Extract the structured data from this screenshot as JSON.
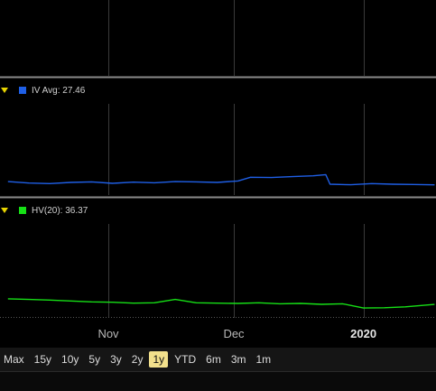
{
  "chart_data": [
    {
      "type": "line",
      "panel": "top",
      "grid": true,
      "series": []
    },
    {
      "type": "line",
      "panel": "iv",
      "legend": "IV Avg: 27.46",
      "color": "#1f5fe6",
      "grid": true,
      "ylim": [
        0,
        100
      ],
      "series": [
        {
          "name": "IV Avg",
          "x": [
            "2019-10-08",
            "2019-10-13",
            "2019-10-18",
            "2019-10-23",
            "2019-10-28",
            "2019-11-02",
            "2019-11-07",
            "2019-11-12",
            "2019-11-17",
            "2019-11-22",
            "2019-11-27",
            "2019-12-02",
            "2019-12-05",
            "2019-12-10",
            "2019-12-15",
            "2019-12-20",
            "2019-12-23",
            "2019-12-24",
            "2019-12-29",
            "2020-01-03",
            "2020-01-08",
            "2020-01-13",
            "2020-01-18"
          ],
          "values": [
            28.6,
            28.1,
            27.9,
            28.3,
            28.5,
            28.0,
            28.4,
            28.2,
            28.6,
            28.5,
            28.3,
            28.8,
            30.1,
            30.0,
            30.3,
            30.6,
            31.0,
            27.7,
            27.5,
            27.9,
            27.7,
            27.6,
            27.46
          ]
        }
      ]
    },
    {
      "type": "line",
      "panel": "hv",
      "legend": "HV(20): 36.37",
      "color": "#16e016",
      "grid": true,
      "ylim": [
        0,
        100
      ],
      "series": [
        {
          "name": "HV(20)",
          "x": [
            "2019-10-08",
            "2019-10-13",
            "2019-10-18",
            "2019-10-23",
            "2019-10-28",
            "2019-11-02",
            "2019-11-07",
            "2019-11-12",
            "2019-11-17",
            "2019-11-22",
            "2019-11-27",
            "2019-12-02",
            "2019-12-07",
            "2019-12-12",
            "2019-12-17",
            "2019-12-22",
            "2019-12-27",
            "2020-01-01",
            "2020-01-06",
            "2020-01-11",
            "2020-01-18"
          ],
          "values": [
            38.2,
            38.0,
            37.8,
            37.5,
            37.2,
            37.1,
            36.8,
            36.9,
            38.0,
            36.9,
            36.8,
            36.7,
            36.9,
            36.6,
            36.7,
            36.4,
            36.6,
            35.2,
            35.3,
            35.6,
            36.37
          ]
        }
      ]
    }
  ],
  "x_axis": {
    "ticks": [
      {
        "label": "Nov",
        "date": "2019-11-01",
        "bold": false
      },
      {
        "label": "Dec",
        "date": "2019-12-01",
        "bold": false
      },
      {
        "label": "2020",
        "date": "2020-01-01",
        "bold": true
      }
    ]
  },
  "range_selector": {
    "options": [
      "Max",
      "15y",
      "10y",
      "5y",
      "3y",
      "2y",
      "1y",
      "YTD",
      "6m",
      "3m",
      "1m"
    ],
    "selected": "1y",
    "active_color": "#f2e08c"
  },
  "colors": {
    "background": "#000000",
    "grid": "#3a3a3a",
    "separator": "#8a8a8a",
    "legend_arrow": "#e8d400"
  }
}
